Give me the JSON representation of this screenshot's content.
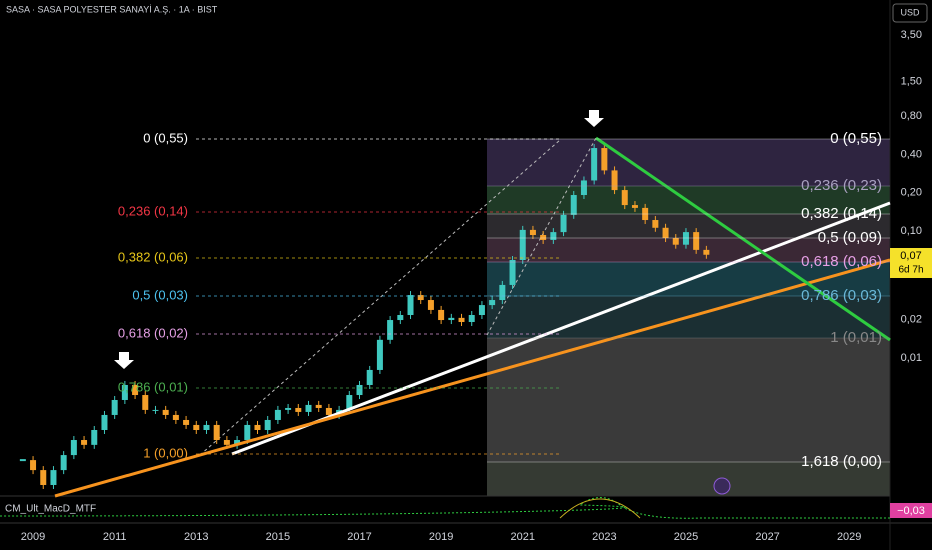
{
  "header": {
    "title": "SASA · SASA POLYESTER SANAYİ A.Ş. · 1A · BIST",
    "currency": "USD"
  },
  "chart_data": {
    "type": "candlestick",
    "x": [
      2008.75,
      2009,
      2009.25,
      2009.5,
      2009.75,
      2010,
      2010.25,
      2010.5,
      2010.75,
      2011,
      2011.25,
      2011.5,
      2011.75,
      2012,
      2012.25,
      2012.5,
      2012.75,
      2013,
      2013.25,
      2013.5,
      2013.75,
      2014,
      2014.25,
      2014.5,
      2014.75,
      2015,
      2015.25,
      2015.5,
      2015.75,
      2016,
      2016.25,
      2016.5,
      2016.75,
      2017,
      2017.25,
      2017.5,
      2017.75,
      2018,
      2018.25,
      2018.5,
      2018.75,
      2019,
      2019.25,
      2019.5,
      2019.75,
      2020,
      2020.25,
      2020.5,
      2020.75,
      2021,
      2021.25,
      2021.5,
      2021.75,
      2022,
      2022.25,
      2022.5,
      2022.75,
      2023,
      2023.25,
      2023.5,
      2023.75,
      2024,
      2024.25,
      2024.5,
      2024.75,
      2025,
      2025.25,
      2025.5
    ],
    "values": [
      0.00157,
      0.00131,
      0.001,
      0.00131,
      0.00172,
      0.00226,
      0.00207,
      0.00271,
      0.00356,
      0.00467,
      0.00613,
      0.00511,
      0.0039,
      0.0039,
      0.00356,
      0.00325,
      0.00297,
      0.00271,
      0.00297,
      0.00226,
      0.00207,
      0.00226,
      0.00297,
      0.00271,
      0.00325,
      0.0039,
      0.00404,
      0.00376,
      0.00427,
      0.00404,
      0.00356,
      0.0039,
      0.00511,
      0.00613,
      0.00805,
      0.0139,
      0.0199,
      0.0218,
      0.0313,
      0.0286,
      0.0239,
      0.0199,
      0.0207,
      0.0192,
      0.0218,
      0.0261,
      0.0286,
      0.0376,
      0.0591,
      0.102,
      0.093,
      0.085,
      0.098,
      0.134,
      0.192,
      0.25,
      0.45,
      0.3,
      0.21,
      0.16,
      0.152,
      0.122,
      0.106,
      0.088,
      0.078,
      0.098,
      0.071,
      0.065
    ],
    "xlim": [
      2008.19,
      2030.0
    ],
    "xticks": [
      2009,
      2011,
      2013,
      2015,
      2017,
      2019,
      2021,
      2023,
      2025,
      2027,
      2029
    ],
    "ylim": [
      0.000834,
      6.59
    ],
    "log_scale": true,
    "yticks": [
      {
        "value": 3.5,
        "label": "3,50"
      },
      {
        "value": 1.5,
        "label": "1,50"
      },
      {
        "value": 0.8,
        "label": "0,80"
      },
      {
        "value": 0.4,
        "label": "0,40"
      },
      {
        "value": 0.2,
        "label": "0,20"
      },
      {
        "value": 0.1,
        "label": "0,10"
      },
      {
        "value": 0.02,
        "label": "0,02"
      },
      {
        "value": 0.01,
        "label": "0,01"
      }
    ],
    "up_color": "#3fc9c0",
    "down_color": "#f5a02a"
  },
  "price_tag": {
    "label": "0,07",
    "countdown": "6d 7h"
  },
  "fib_left": [
    "0 (0,55)",
    "0,236 (0,14)",
    "0,382 (0,06)",
    "0,5 (0,03)",
    "0,618 (0,02)",
    "0,786 (0,01)",
    "1 (0,00)"
  ],
  "fib_right": [
    "0 (0,55)",
    "0,236 (0,23)",
    "0,382 (0,14)",
    "0,5 (0,09)",
    "0,618 (0,06)",
    "0,786 (0,03)",
    "1 (0,01)",
    "1,618 (0,00)"
  ],
  "indicator": {
    "name": "CM_Ult_MacD_MTF",
    "value_label": "−0,03"
  }
}
